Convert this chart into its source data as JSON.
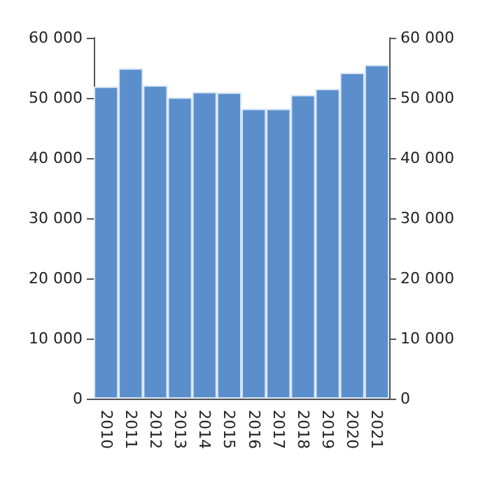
{
  "chart_data": {
    "type": "bar",
    "categories": [
      "2010",
      "2011",
      "2012",
      "2013",
      "2014",
      "2015",
      "2016",
      "2017",
      "2018",
      "2019",
      "2020",
      "2021"
    ],
    "values": [
      51900,
      54900,
      52100,
      50100,
      51000,
      50900,
      48200,
      48200,
      50500,
      51500,
      54200,
      55500
    ],
    "color": "#5b8fcc",
    "ylim": [
      0,
      60000
    ],
    "yticks": [
      {
        "value": 0,
        "label": "0"
      },
      {
        "value": 10000,
        "label": "10 000"
      },
      {
        "value": 20000,
        "label": "20 000"
      },
      {
        "value": 30000,
        "label": "30 000"
      },
      {
        "value": 40000,
        "label": "40 000"
      },
      {
        "value": 50000,
        "label": "50 000"
      },
      {
        "value": 60000,
        "label": "60 000"
      }
    ],
    "y2lim": [
      0,
      60000
    ],
    "y2ticks": [
      {
        "value": 0,
        "label": "0"
      },
      {
        "value": 10000,
        "label": "10 000"
      },
      {
        "value": 20000,
        "label": "20 000"
      },
      {
        "value": 30000,
        "label": "30 000"
      },
      {
        "value": 40000,
        "label": "40 000"
      },
      {
        "value": 50000,
        "label": "50 000"
      },
      {
        "value": 60000,
        "label": "60 000"
      }
    ],
    "grid": false
  }
}
